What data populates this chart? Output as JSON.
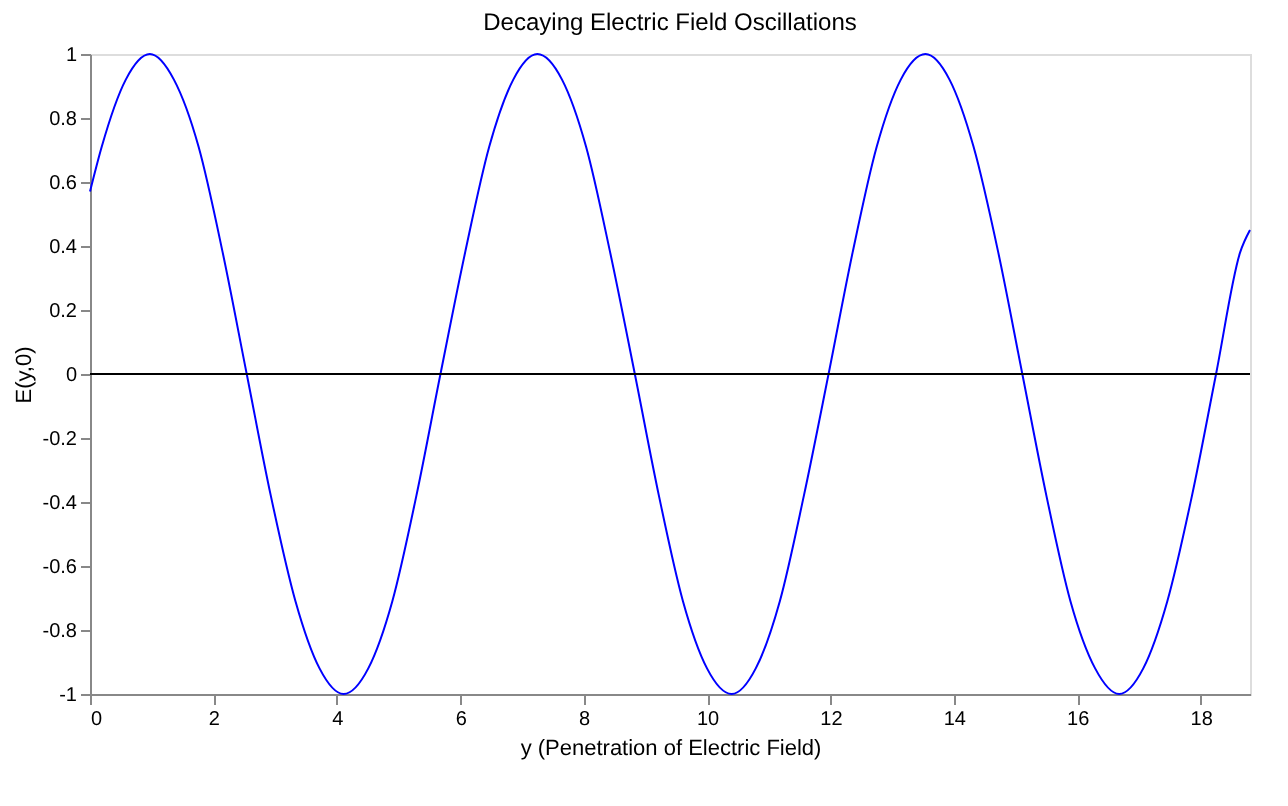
{
  "chart_data": {
    "type": "line",
    "title": "Decaying Electric Field Oscillations",
    "xlabel": "y (Penetration of Electric Field)",
    "ylabel": "E(y,0)",
    "x": [
      0,
      0.19,
      0.58,
      0.97,
      1.36,
      1.76,
      2.15,
      2.54,
      2.93,
      3.33,
      3.72,
      4.11,
      4.51,
      4.9,
      5.29,
      5.68,
      6.08,
      6.47,
      6.86,
      7.25,
      7.65,
      8.04,
      8.43,
      8.83,
      9.22,
      9.61,
      10.0,
      10.4,
      10.79,
      11.18,
      11.57,
      11.97,
      12.36,
      12.75,
      13.14,
      13.54,
      13.93,
      14.32,
      14.72,
      15.11,
      15.5,
      15.89,
      16.29,
      16.68,
      17.07,
      17.46,
      17.86,
      18.25,
      18.64,
      18.8
    ],
    "series": [
      {
        "color": "#0000ff",
        "values": [
          0.57,
          0.71,
          0.92,
          1,
          0.92,
          0.71,
          0.38,
          0,
          -0.38,
          -0.71,
          -0.92,
          -1,
          -0.92,
          -0.71,
          -0.38,
          0,
          0.38,
          0.71,
          0.92,
          1,
          0.92,
          0.71,
          0.38,
          0,
          -0.38,
          -0.71,
          -0.92,
          -1,
          -0.92,
          -0.71,
          -0.38,
          0,
          0.38,
          0.71,
          0.92,
          1,
          0.92,
          0.71,
          0.38,
          0,
          -0.38,
          -0.71,
          -0.92,
          -1,
          -0.92,
          -0.71,
          -0.38,
          0,
          0.38,
          0.45
        ]
      }
    ],
    "xlim": [
      0,
      18.8
    ],
    "xticks": [
      0,
      2,
      4,
      6,
      8,
      10,
      12,
      14,
      16,
      18
    ],
    "ylim": [
      -1,
      1
    ],
    "yticks": [
      -1,
      -0.8,
      -0.6,
      -0.4,
      -0.2,
      0,
      0.2,
      0.4,
      0.6,
      0.8,
      1
    ],
    "ref_lines": [
      {
        "axis": "y",
        "value": 0,
        "color": "#000000"
      }
    ],
    "grid": false,
    "marker": "none",
    "line_style": "solid"
  }
}
